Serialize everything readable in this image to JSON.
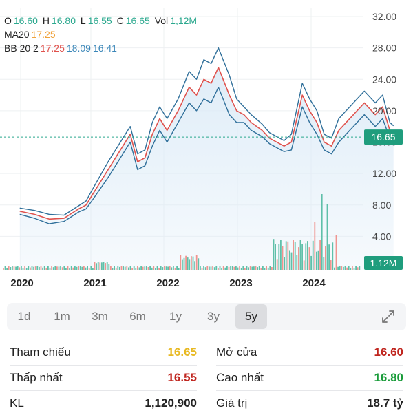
{
  "ohlc": {
    "o_label": "O",
    "o": "16.60",
    "h_label": "H",
    "h": "16.80",
    "l_label": "L",
    "l": "16.55",
    "c_label": "C",
    "c": "16.65",
    "vol_label": "Vol",
    "vol": "1,12M"
  },
  "ma": {
    "label": "MA20",
    "value": "17.25"
  },
  "bb": {
    "label": "BB 20 2",
    "mid": "17.25",
    "upper": "18.09",
    "lower": "16.41"
  },
  "price_tag": "16.65",
  "volume_tag": "1.12M",
  "range_tabs": [
    {
      "label": "1d"
    },
    {
      "label": "1m"
    },
    {
      "label": "3m"
    },
    {
      "label": "6m"
    },
    {
      "label": "1y"
    },
    {
      "label": "3y"
    },
    {
      "label": "5y"
    }
  ],
  "active_range": "5y",
  "stats": {
    "reference": {
      "label": "Tham chiếu",
      "value": "16.65",
      "color": "#e8b923"
    },
    "open": {
      "label": "Mở cửa",
      "value": "16.60",
      "color": "#c0261f"
    },
    "low": {
      "label": "Thấp nhất",
      "value": "16.55",
      "color": "#c0261f"
    },
    "high": {
      "label": "Cao nhất",
      "value": "16.80",
      "color": "#1a9c3a"
    },
    "volume": {
      "label": "KL",
      "value": "1,120,900",
      "color": "#222222"
    },
    "value": {
      "label": "Giá trị",
      "value": "18.7 tỷ",
      "color": "#222222"
    }
  },
  "colors": {
    "price_line": "#e0524d",
    "band": "#2f6f9a",
    "area": "#dcebf7",
    "current_dashed": "#2aa88e",
    "tag_bg": "#1f9d7d",
    "vol_up": "#4fb9a0",
    "vol_down": "#ef8a84"
  },
  "chart_data": {
    "type": "line",
    "x_ticks": [
      "2020",
      "2021",
      "2022",
      "2023",
      "2024"
    ],
    "y_ticks": [
      "32.00",
      "28.00",
      "24.00",
      "20.00",
      "16.00",
      "12.00",
      "8.00",
      "4.00"
    ],
    "ylim": [
      0,
      32
    ],
    "x": [
      2019.6,
      2019.8,
      2020.0,
      2020.2,
      2020.4,
      2020.5,
      2020.6,
      2020.8,
      2021.0,
      2021.1,
      2021.2,
      2021.3,
      2021.4,
      2021.5,
      2021.6,
      2021.75,
      2021.9,
      2022.0,
      2022.1,
      2022.2,
      2022.3,
      2022.45,
      2022.55,
      2022.65,
      2022.75,
      2022.9,
      2023.0,
      2023.2,
      2023.3,
      2023.45,
      2023.55,
      2023.65,
      2023.75,
      2023.85,
      2023.95,
      2024.1,
      2024.3,
      2024.45,
      2024.55,
      2024.65,
      2024.7
    ],
    "series": [
      {
        "values": [
          7.2,
          6.8,
          6.2,
          6.3,
          7.5,
          8.0,
          9.5,
          12.5,
          15.5,
          17.0,
          13.5,
          14.0,
          17.0,
          19.0,
          17.5,
          20.0,
          23.0,
          22.0,
          24.0,
          23.5,
          25.5,
          22.0,
          20.0,
          19.5,
          18.5,
          17.5,
          16.5,
          15.5,
          16.0,
          22.0,
          20.0,
          18.5,
          16.0,
          15.5,
          17.5,
          19.0,
          21.0,
          19.5,
          20.5,
          17.5,
          16.65
        ]
      },
      {
        "values": [
          7.6,
          7.3,
          6.8,
          6.7,
          7.9,
          8.5,
          10.2,
          13.5,
          16.5,
          18.0,
          14.5,
          15.0,
          18.5,
          20.5,
          19.0,
          21.5,
          25.0,
          24.0,
          26.5,
          26.0,
          28.0,
          24.5,
          21.5,
          20.5,
          19.5,
          18.3,
          17.2,
          16.2,
          17.0,
          23.5,
          21.5,
          20.0,
          17.0,
          16.5,
          19.0,
          20.5,
          22.5,
          21.0,
          22.0,
          18.5,
          18.09
        ]
      },
      {
        "values": [
          6.8,
          6.3,
          5.6,
          5.9,
          7.1,
          7.5,
          8.8,
          11.5,
          14.5,
          16.0,
          12.5,
          13.0,
          15.5,
          17.5,
          16.0,
          18.5,
          21.0,
          20.0,
          21.5,
          21.0,
          23.0,
          19.5,
          18.5,
          18.5,
          17.5,
          16.7,
          15.8,
          14.8,
          15.0,
          20.5,
          18.5,
          17.0,
          15.0,
          14.5,
          16.0,
          17.5,
          19.5,
          18.0,
          19.0,
          16.5,
          16.41
        ]
      }
    ],
    "volume_tag": "1.12M",
    "current_price": 16.65
  }
}
